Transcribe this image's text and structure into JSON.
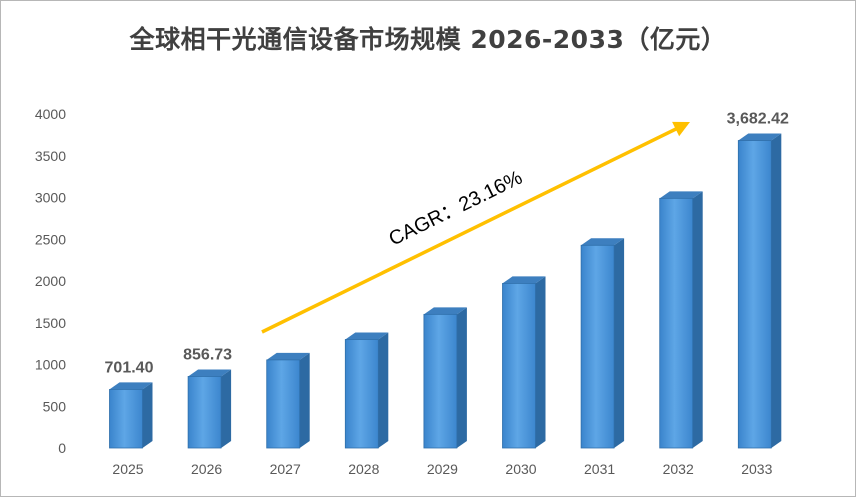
{
  "chart_data": {
    "type": "bar",
    "title": "全球相干光通信设备市场规模 2026-2033（亿元）",
    "categories": [
      "2025",
      "2026",
      "2027",
      "2028",
      "2029",
      "2030",
      "2031",
      "2032",
      "2033"
    ],
    "values": [
      701.4,
      856.73,
      1055.13,
      1299.48,
      1600.42,
      1971.07,
      2427.57,
      2989.79,
      3682.42
    ],
    "data_labels": [
      "701.40",
      "856.73",
      "",
      "",
      "",
      "",
      "",
      "",
      "3,682.42"
    ],
    "yticks": [
      "0",
      "500",
      "1000",
      "1500",
      "2000",
      "2500",
      "3000",
      "3500",
      "4000"
    ],
    "ylim": [
      0,
      4000
    ],
    "grid": false,
    "annotation": "CAGR：23.16%",
    "colors": {
      "bar_front": "#4a93d6",
      "bar_side": "#2d6aa3",
      "bar_top": "#3d7fbf",
      "arrow": "#ffc000"
    }
  }
}
